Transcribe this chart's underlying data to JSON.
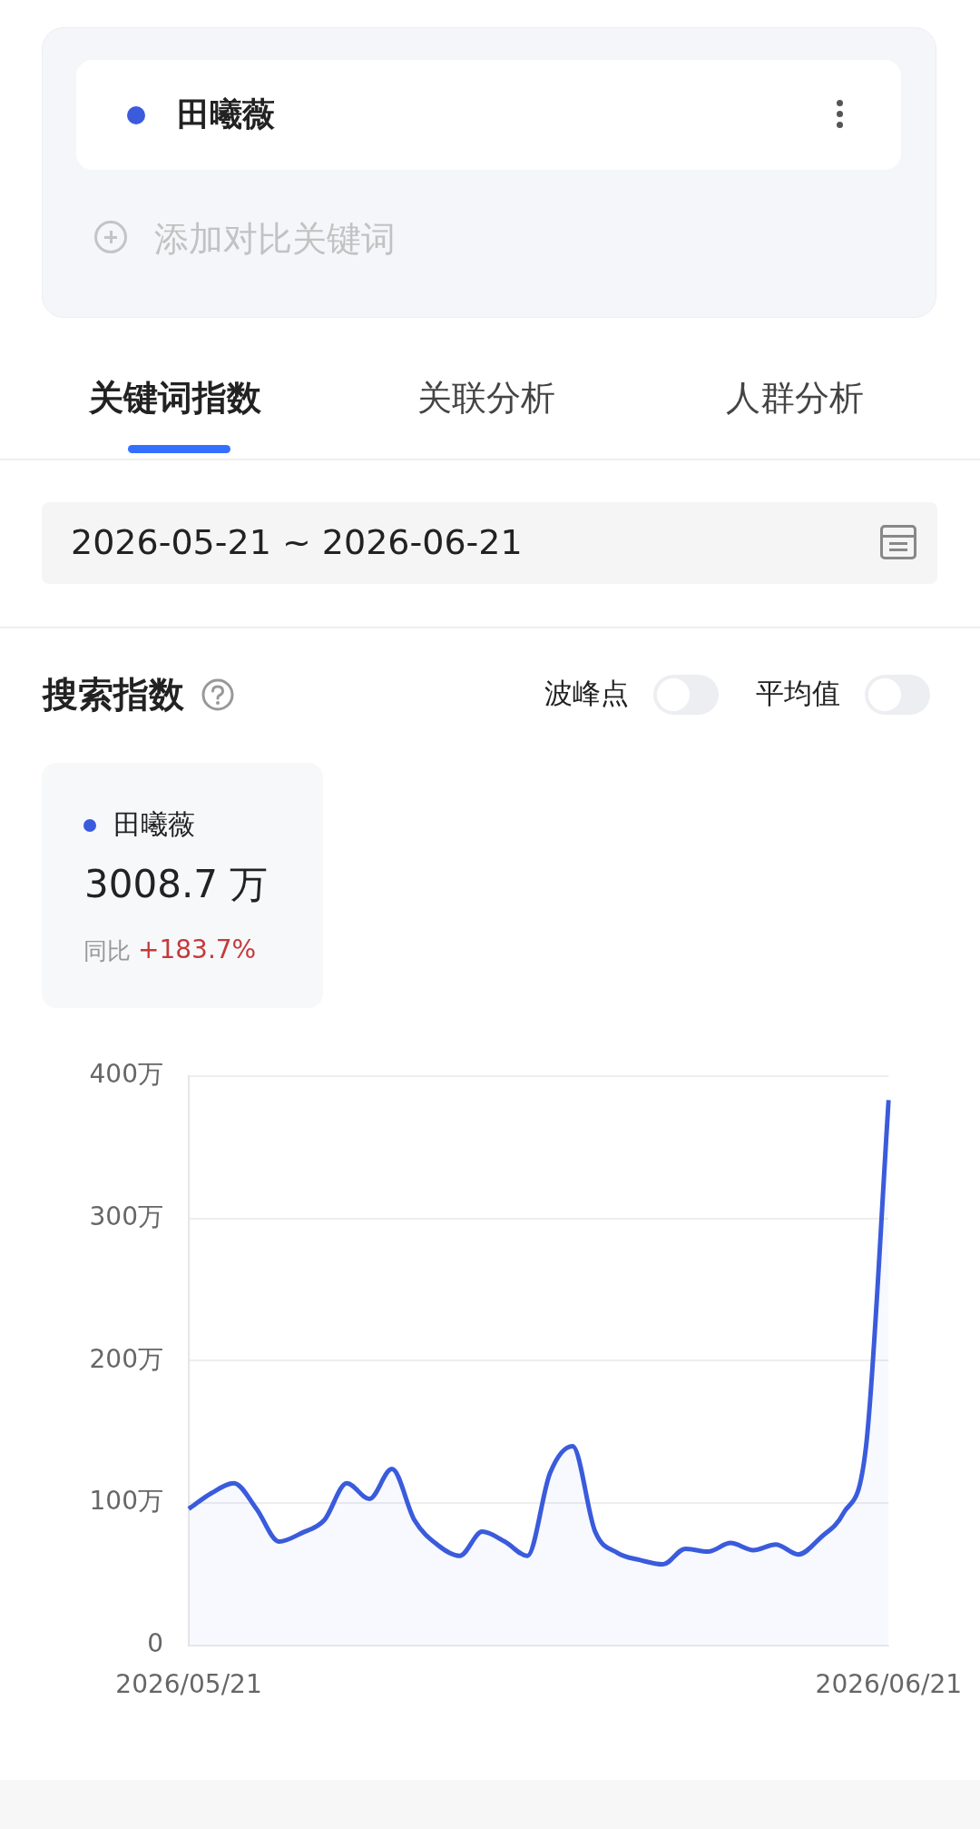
{
  "chart_data": {
    "type": "area",
    "title": "搜索指数",
    "annotations": [
      "添加对比关键词",
      "关键词指数",
      "关联分析",
      "人群分析",
      "2026-05-21 ~ 2026-06-21",
      "波峰点",
      "平均值",
      "3008.7 万",
      "同比",
      "+183.7%"
    ],
    "categories": [
      "2026/05/21",
      null,
      null,
      null,
      null,
      null,
      null,
      null,
      null,
      null,
      null,
      null,
      null,
      null,
      null,
      null,
      null,
      null,
      null,
      null,
      null,
      null,
      null,
      null,
      null,
      null,
      null,
      null,
      null,
      null,
      null,
      "2026/06/21"
    ],
    "series": [
      {
        "name": "田曦薇",
        "color": "#3a5bdc",
        "values": [
          96,
          107,
          114,
          96,
          73,
          79,
          88,
          114,
          103,
          124,
          88,
          71,
          63,
          80,
          73,
          63,
          121,
          140,
          80,
          65,
          60,
          57,
          68,
          66,
          72,
          67,
          71,
          64,
          76,
          93,
          140,
          383
        ]
      }
    ],
    "ylim": [
      0,
      400
    ],
    "yticks": [
      0,
      {
        "value": 100,
        "label": "100万"
      },
      {
        "value": 200,
        "label": "200万"
      },
      {
        "value": 300,
        "label": "300万"
      },
      {
        "value": 400,
        "label": "400万"
      }
    ],
    "grid": "y",
    "legend": "top left"
  }
}
